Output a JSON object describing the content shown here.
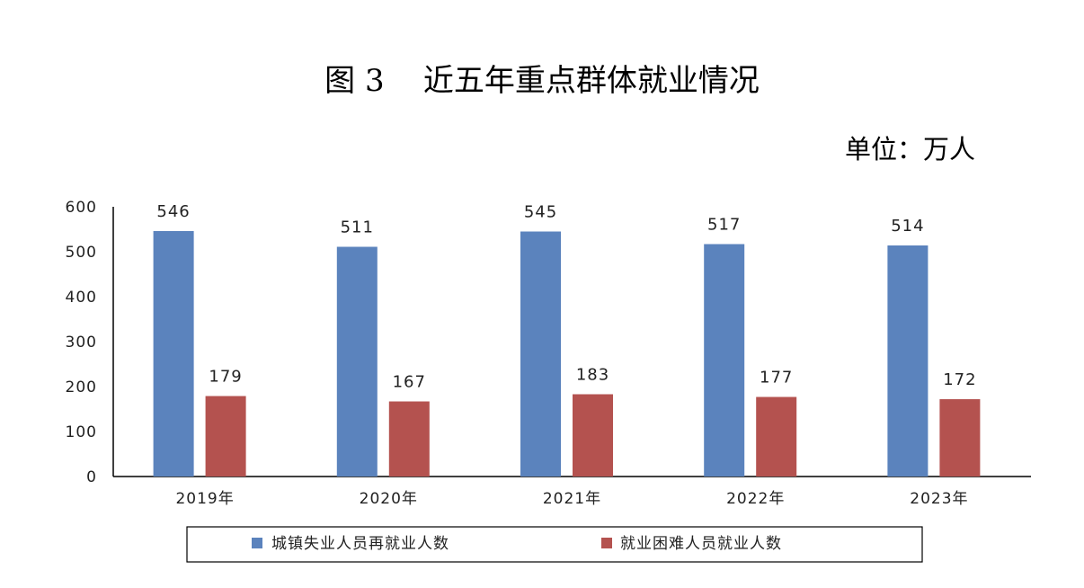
{
  "figure": {
    "title": "图 3    近五年重点群体就业情况",
    "unit": "单位：万人"
  },
  "chart_data": {
    "type": "bar",
    "categories": [
      "2019年",
      "2020年",
      "2021年",
      "2022年",
      "2023年"
    ],
    "series": [
      {
        "name": "城镇失业人员再就业人数",
        "values": [
          546,
          511,
          545,
          517,
          514
        ],
        "color": "#5B83BD"
      },
      {
        "name": "就业困难人员就业人数",
        "values": [
          179,
          167,
          183,
          177,
          172
        ],
        "color": "#B4524F"
      }
    ],
    "ylim": [
      0,
      600
    ],
    "yticks": [
      0,
      100,
      200,
      300,
      400,
      500,
      600
    ],
    "grid": false,
    "data_labels": true,
    "legend_position": "bottom"
  }
}
